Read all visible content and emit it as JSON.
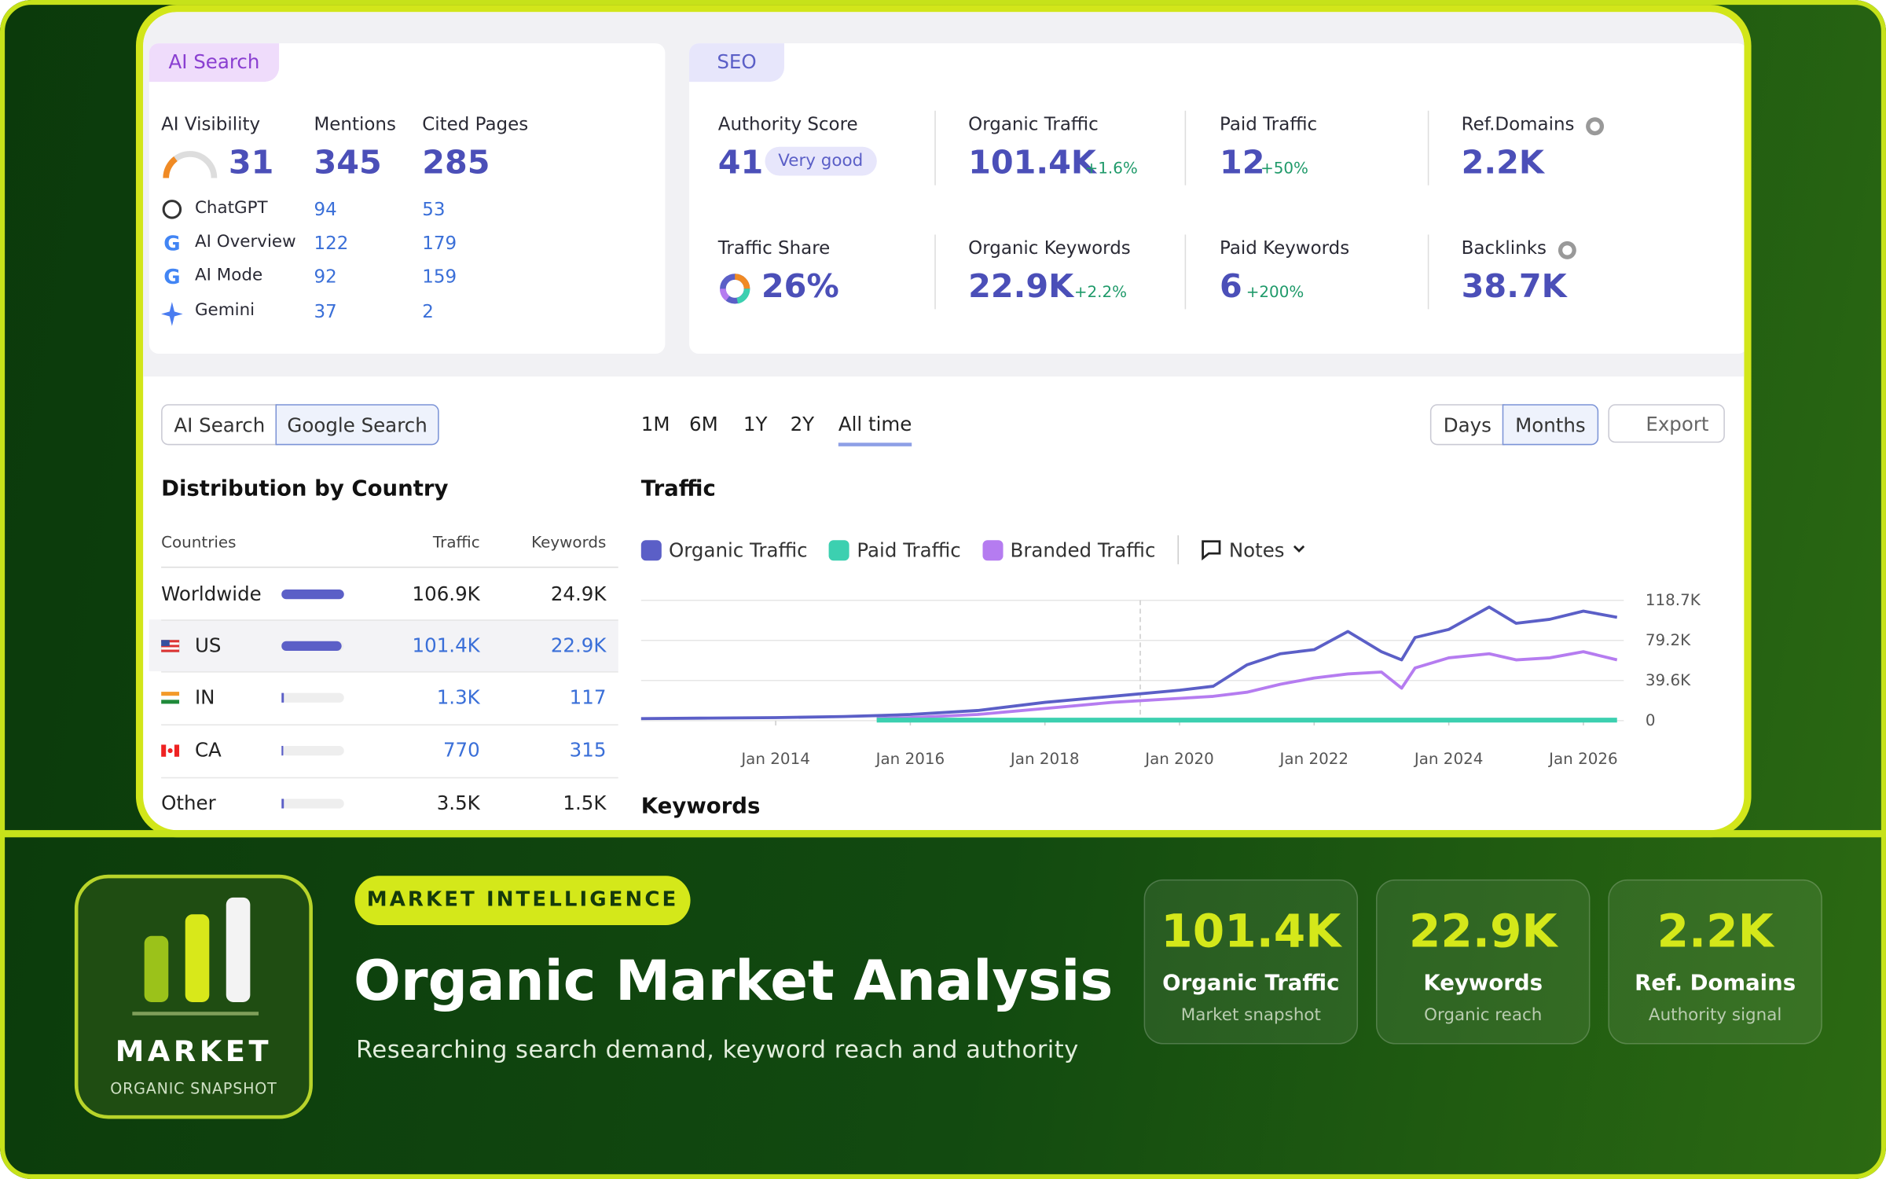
{
  "ai_search": {
    "tab": "AI Search",
    "metrics": [
      {
        "label": "AI Visibility",
        "value": "31"
      },
      {
        "label": "Mentions",
        "value": "345"
      },
      {
        "label": "Cited Pages",
        "value": "285"
      }
    ],
    "rows": [
      {
        "name": "ChatGPT",
        "mentions": "94",
        "cited": "53"
      },
      {
        "name": "AI Overview",
        "mentions": "122",
        "cited": "179"
      },
      {
        "name": "AI Mode",
        "mentions": "92",
        "cited": "159"
      },
      {
        "name": "Gemini",
        "mentions": "37",
        "cited": "2"
      }
    ]
  },
  "seo": {
    "tab": "SEO",
    "metrics": [
      {
        "label": "Authority Score",
        "value": "41",
        "badge": "Very good"
      },
      {
        "label": "Organic Traffic",
        "value": "101.4K",
        "change": "+1.6%"
      },
      {
        "label": "Paid Traffic",
        "value": "12",
        "change": "+50%"
      },
      {
        "label": "Ref.Domains",
        "value": "2.2K"
      },
      {
        "label": "Traffic Share",
        "value": "26%"
      },
      {
        "label": "Organic Keywords",
        "value": "22.9K",
        "change": "+2.2%"
      },
      {
        "label": "Paid Keywords",
        "value": "6",
        "change": "+200%"
      },
      {
        "label": "Backlinks",
        "value": "38.7K"
      }
    ]
  },
  "toggles": [
    "AI Search",
    "Google Search"
  ],
  "periods": [
    "1M",
    "6M",
    "1Y",
    "2Y",
    "All time"
  ],
  "granularity": [
    "Days",
    "Months"
  ],
  "export": "Export",
  "distribution": {
    "title": "Distribution by Country",
    "columns": [
      "Countries",
      "Traffic",
      "Keywords"
    ],
    "rows": [
      [
        "Worldwide",
        "106.9K",
        "24.9K"
      ],
      [
        "US",
        "101.4K",
        "22.9K"
      ],
      [
        "IN",
        "1.3K",
        "117"
      ],
      [
        "CA",
        "770",
        "315"
      ],
      [
        "Other",
        "3.5K",
        "1.5K"
      ]
    ]
  },
  "traffic_chart": {
    "type": "line",
    "title": "Traffic",
    "notes": "Notes",
    "x": [
      2012,
      2013,
      2014,
      2015,
      2015.5,
      2016,
      2017,
      2018,
      2019,
      2020,
      2020.5,
      2021,
      2021.5,
      2022,
      2022.5,
      2023,
      2023.3,
      2023.5,
      2024,
      2024.6,
      2025,
      2025.5,
      2026,
      2026.5
    ],
    "xlim": [
      2012,
      2026.6
    ],
    "ylim": [
      0,
      118700
    ],
    "xticks": [
      {
        "value": 2014,
        "label": "Jan 2014"
      },
      {
        "value": 2016,
        "label": "Jan 2016"
      },
      {
        "value": 2018,
        "label": "Jan 2018"
      },
      {
        "value": 2020,
        "label": "Jan 2020"
      },
      {
        "value": 2022,
        "label": "Jan 2022"
      },
      {
        "value": 2024,
        "label": "Jan 2024"
      },
      {
        "value": 2026,
        "label": "Jan 2026"
      }
    ],
    "yticks": [
      0,
      {
        "value": 39600,
        "label": "39.6K"
      },
      {
        "value": 79200,
        "label": "79.2K"
      },
      {
        "value": 118700,
        "label": "118.7K"
      }
    ],
    "series": [
      {
        "name": "Organic Traffic",
        "color": "#5b5fc7",
        "values": [
          2000,
          2500,
          3000,
          4000,
          5000,
          6000,
          10000,
          18000,
          24000,
          30000,
          34000,
          55000,
          66000,
          70000,
          88000,
          68000,
          60000,
          82000,
          90000,
          112000,
          96000,
          100000,
          108000,
          102000
        ]
      },
      {
        "name": "Paid Traffic",
        "color": "#3cd0b0",
        "values": [
          null,
          null,
          null,
          null,
          500,
          500,
          500,
          500,
          500,
          500,
          500,
          500,
          500,
          500,
          500,
          500,
          500,
          500,
          500,
          500,
          500,
          500,
          500,
          500
        ]
      },
      {
        "name": "Branded Traffic",
        "color": "#b57cf0",
        "values": [
          null,
          null,
          null,
          null,
          2000,
          3000,
          6000,
          12000,
          18000,
          22000,
          24000,
          28000,
          36000,
          42000,
          46000,
          48000,
          32000,
          52000,
          62000,
          66000,
          60000,
          62000,
          68000,
          60000
        ]
      }
    ]
  },
  "keywords_title": "Keywords",
  "banner": {
    "logo_title": "MARKET",
    "logo_subtitle": "ORGANIC SNAPSHOT",
    "tag": "MARKET INTELLIGENCE",
    "title": "Organic Market Analysis",
    "subtitle": "Researching search demand, keyword reach and authority",
    "stats": [
      {
        "value": "101.4K",
        "label": "Organic Traffic",
        "note": "Market snapshot"
      },
      {
        "value": "22.9K",
        "label": "Keywords",
        "note": "Organic reach"
      },
      {
        "value": "2.2K",
        "label": "Ref. Domains",
        "note": "Authority signal"
      }
    ]
  }
}
